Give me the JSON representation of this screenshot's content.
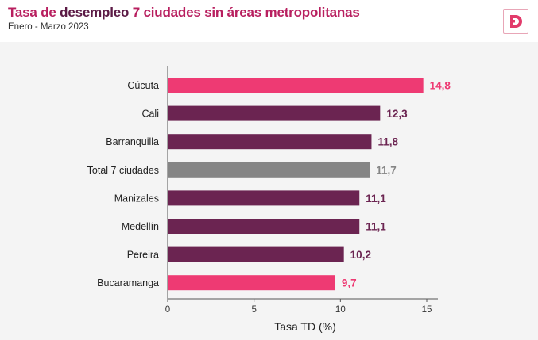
{
  "header": {
    "title_part1": "Tasa de ",
    "title_part2": "desempleo",
    "title_part3": " 7 ciudades sin áreas metropolitanas",
    "subtitle": "Enero - Marzo 2023",
    "logo_icon": "d-brand-logo-icon"
  },
  "colors": {
    "pink": "#ee3a73",
    "maroon": "#6b2451",
    "gray": "#858585",
    "title_accent": "#b81f5f",
    "title_dark": "#5b1a45"
  },
  "chart_data": {
    "type": "bar",
    "orientation": "horizontal",
    "categories": [
      "Cúcuta",
      "Cali",
      "Barranquilla",
      "Total 7 ciudades",
      "Manizales",
      "Medellín",
      "Pereira",
      "Bucaramanga"
    ],
    "values": [
      14.8,
      12.3,
      11.8,
      11.7,
      11.1,
      11.1,
      10.2,
      9.7
    ],
    "value_labels": [
      "14,8",
      "12,3",
      "11,8",
      "11,7",
      "11,1",
      "11,1",
      "10,2",
      "9,7"
    ],
    "bar_colors": [
      "#ee3a73",
      "#6b2451",
      "#6b2451",
      "#858585",
      "#6b2451",
      "#6b2451",
      "#6b2451",
      "#ee3a73"
    ],
    "label_colors": [
      "#ee3a73",
      "#6b2451",
      "#6b2451",
      "#858585",
      "#6b2451",
      "#6b2451",
      "#6b2451",
      "#ee3a73"
    ],
    "xlabel": "Tasa TD (%)",
    "xlim": [
      0,
      15
    ],
    "xticks": [
      0,
      5,
      10,
      15
    ],
    "grid": false
  }
}
